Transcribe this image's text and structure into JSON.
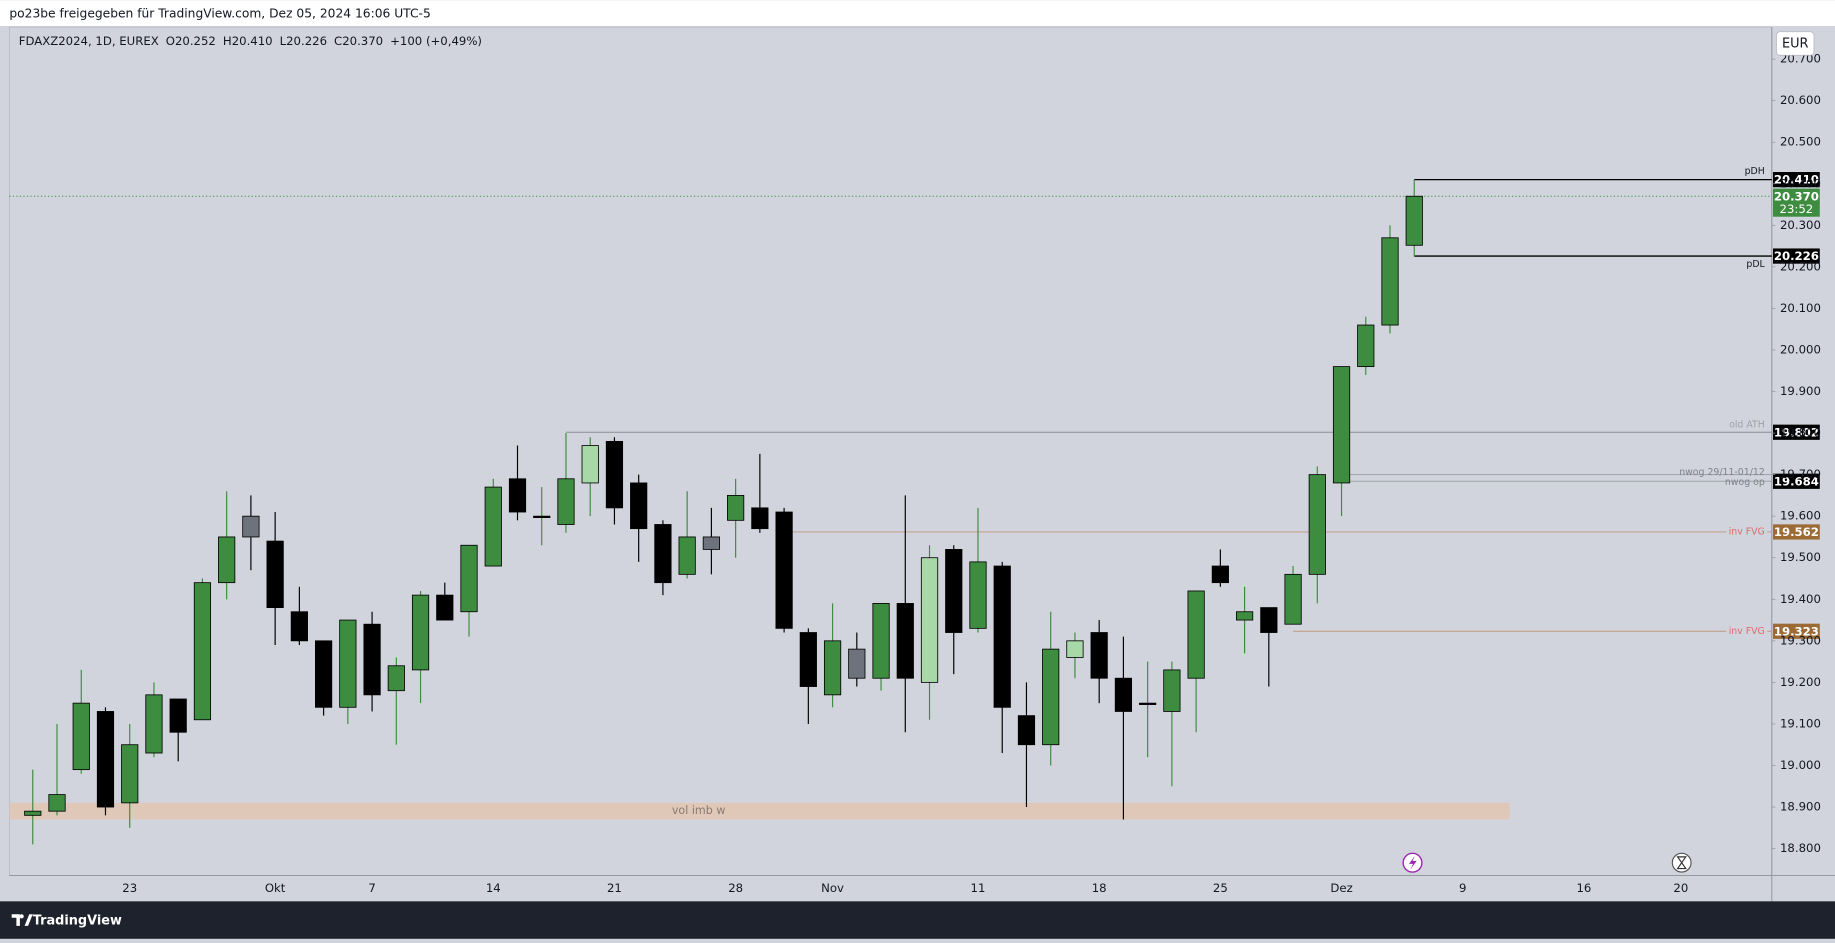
{
  "window_title": "po23be freigegeben für TradingView.com, Dez 05, 2024 16:06 UTC-5",
  "footer": "TradingView",
  "chart_data": {
    "type": "candlestick",
    "title": "FDAXZ2024, 1D, EUREX",
    "ohlc_text": [
      "O20.252",
      "H20.410",
      "L20.226",
      "C20.370",
      "+100 (+0,49%)"
    ],
    "currency": "EUR",
    "categories": [
      null,
      null,
      null,
      null,
      "23",
      null,
      null,
      null,
      null,
      null,
      "Okt",
      null,
      null,
      null,
      "7",
      null,
      null,
      null,
      null,
      "14",
      null,
      null,
      null,
      null,
      "21",
      null,
      null,
      null,
      null,
      "28",
      null,
      null,
      null,
      "Nov",
      null,
      null,
      null,
      null,
      null,
      "11",
      null,
      null,
      null,
      null,
      "18",
      null,
      null,
      null,
      null,
      "25",
      null,
      null,
      null,
      null,
      "Dez",
      null,
      null,
      null,
      null,
      "9",
      null,
      null,
      null,
      null,
      "16",
      null,
      null,
      null,
      "20"
    ],
    "series": [
      {
        "open": [
          18.88,
          18.89,
          18.99,
          19.13,
          18.91,
          19.03,
          19.16,
          19.11,
          19.44,
          19.6,
          19.54,
          19.37,
          19.3,
          19.14,
          19.34,
          19.18,
          19.23,
          19.41,
          19.37,
          19.48,
          19.69,
          19.6,
          19.58,
          19.68,
          19.78,
          19.68,
          19.58,
          19.46,
          19.55,
          19.59,
          19.62,
          19.61,
          19.32,
          19.17,
          19.28,
          19.21,
          19.39,
          19.2,
          19.52,
          19.33,
          19.48,
          19.12,
          19.05,
          19.26,
          19.32,
          19.21,
          19.15,
          19.13,
          19.21,
          19.48,
          19.35,
          19.38,
          19.34,
          19.46,
          19.68,
          19.96,
          20.06,
          20.252,
          null,
          null,
          null,
          null,
          null,
          null,
          null,
          null,
          null,
          null,
          null
        ],
        "high": [
          18.99,
          19.1,
          19.23,
          19.14,
          19.1,
          19.2,
          19.16,
          19.45,
          19.66,
          19.65,
          19.61,
          19.43,
          19.3,
          19.35,
          19.37,
          19.26,
          19.42,
          19.44,
          19.53,
          19.69,
          19.77,
          19.67,
          19.8,
          19.79,
          19.79,
          19.7,
          19.59,
          19.66,
          19.62,
          19.69,
          19.75,
          19.62,
          19.33,
          19.39,
          19.32,
          19.39,
          19.65,
          19.53,
          19.53,
          19.62,
          19.49,
          19.2,
          19.37,
          19.32,
          19.35,
          19.31,
          19.25,
          19.25,
          19.42,
          19.52,
          19.43,
          19.38,
          19.48,
          19.72,
          19.96,
          20.08,
          20.3,
          20.41,
          null,
          null,
          null,
          null,
          null,
          null,
          null,
          null,
          null,
          null,
          null
        ],
        "low": [
          18.81,
          18.88,
          18.98,
          18.88,
          18.85,
          19.02,
          19.01,
          19.11,
          19.4,
          19.47,
          19.29,
          19.29,
          19.12,
          19.1,
          19.13,
          19.05,
          19.15,
          19.35,
          19.31,
          19.48,
          19.59,
          19.53,
          19.56,
          19.6,
          19.58,
          19.49,
          19.41,
          19.45,
          19.46,
          19.5,
          19.56,
          19.32,
          19.1,
          19.14,
          19.19,
          19.18,
          19.08,
          19.11,
          19.22,
          19.32,
          19.03,
          18.9,
          19.0,
          19.21,
          19.15,
          18.87,
          19.02,
          18.95,
          19.08,
          19.43,
          19.27,
          19.19,
          19.34,
          19.39,
          19.6,
          19.94,
          20.04,
          20.226,
          null,
          null,
          null,
          null,
          null,
          null,
          null,
          null,
          null,
          null,
          null
        ],
        "close": [
          18.89,
          18.93,
          19.15,
          18.9,
          19.05,
          19.17,
          19.08,
          19.44,
          19.55,
          19.55,
          19.38,
          19.3,
          19.14,
          19.35,
          19.17,
          19.24,
          19.41,
          19.35,
          19.53,
          19.67,
          19.61,
          19.6,
          19.69,
          19.77,
          19.62,
          19.57,
          19.44,
          19.55,
          19.52,
          19.65,
          19.57,
          19.33,
          19.19,
          19.3,
          19.21,
          19.39,
          19.21,
          19.5,
          19.32,
          19.49,
          19.14,
          19.05,
          19.28,
          19.3,
          19.21,
          19.13,
          19.15,
          19.23,
          19.42,
          19.44,
          19.37,
          19.32,
          19.46,
          19.7,
          19.96,
          20.06,
          20.27,
          20.37,
          null,
          null,
          null,
          null,
          null,
          null,
          null,
          null,
          null,
          null,
          null
        ],
        "up_color": "#3d8c40",
        "down_color": "#000000",
        "colors": [
          "#3d8c40",
          "#3d8c40",
          "#3d8c40",
          "#000000",
          "#3d8c40",
          "#3d8c40",
          "#000000",
          "#3d8c40",
          "#3d8c40",
          "#6e727c",
          "#000000",
          "#000000",
          "#000000",
          "#3d8c40",
          "#000000",
          "#3d8c40",
          "#3d8c40",
          "#000000",
          "#3d8c40",
          "#3d8c40",
          "#000000",
          "#000000",
          "#3d8c40",
          "#a8d8a8",
          "#000000",
          "#000000",
          "#000000",
          "#3d8c40",
          "#6e727c",
          "#3d8c40",
          "#000000",
          "#000000",
          "#000000",
          "#3d8c40",
          "#6e727c",
          "#3d8c40",
          "#000000",
          "#a8d8a8",
          "#000000",
          "#3d8c40",
          "#000000",
          "#000000",
          "#3d8c40",
          "#a8d8a8",
          "#000000",
          "#000000",
          "#000000",
          "#3d8c40",
          "#3d8c40",
          "#000000",
          "#3d8c40",
          "#000000",
          "#3d8c40",
          "#3d8c40",
          "#3d8c40",
          "#3d8c40",
          "#3d8c40",
          "#3d8c40",
          null,
          null,
          null,
          null,
          null,
          null,
          null,
          null,
          null,
          null,
          null
        ]
      }
    ],
    "ylim": [
      18.735,
      20.777
    ],
    "yticks": [
      {
        "value": 18.8,
        "label": "18.800"
      },
      {
        "value": 18.9,
        "label": "18.900"
      },
      {
        "value": 19.0,
        "label": "19.000"
      },
      {
        "value": 19.1,
        "label": "19.100"
      },
      {
        "value": 19.2,
        "label": "19.200"
      },
      {
        "value": 19.3,
        "label": "19.300"
      },
      {
        "value": 19.4,
        "label": "19.400"
      },
      {
        "value": 19.5,
        "label": "19.500"
      },
      {
        "value": 19.6,
        "label": "19.600"
      },
      {
        "value": 19.7,
        "label": "19.700"
      },
      {
        "value": 19.8,
        "label": "19.800"
      },
      {
        "value": 19.9,
        "label": "19.900"
      },
      {
        "value": 20.0,
        "label": "20.000"
      },
      {
        "value": 20.1,
        "label": "20.100"
      },
      {
        "value": 20.2,
        "label": "20.200"
      },
      {
        "value": 20.3,
        "label": "20.300"
      },
      {
        "value": 20.4,
        "label": "20.400"
      },
      {
        "value": 20.5,
        "label": "20.500"
      },
      {
        "value": 20.6,
        "label": "20.600"
      },
      {
        "value": 20.7,
        "label": "20.700"
      }
    ],
    "grid": false,
    "levels": [
      {
        "name": "pDH",
        "value": 20.41,
        "label": "20.410",
        "color": "#000000",
        "tag_color": "#131722",
        "badge_color": "#000000"
      },
      {
        "name": "pDL",
        "value": 20.226,
        "label": "20.226",
        "color": "#000000",
        "tag_color": "#131722",
        "badge_color": "#000000"
      },
      {
        "name": "old ATH",
        "value": 19.802,
        "label": "19.802",
        "color": "#8a8d94",
        "tag_color": "#9ea1a8",
        "badge_color": "#000000"
      },
      {
        "name": "nwog 29/11-01/12",
        "value": 19.7,
        "color": "#9ea1a8",
        "tag_color": "#7f828a"
      },
      {
        "name": "nwog op",
        "value": 19.684,
        "label": "19.684",
        "color": "#9ea1a8",
        "tag_color": "#7f828a",
        "badge_color": "#000000"
      },
      {
        "name": "inv FVG",
        "value": 19.562,
        "label": "19.562",
        "color": "#c09a80",
        "tag_color": "#e06a6a",
        "badge_color": "#9c6a35"
      },
      {
        "name": "inv FVG",
        "value": 19.323,
        "label": "19.323",
        "color": "#c09a80",
        "tag_color": "#e06a6a",
        "badge_color": "#9c6a35"
      }
    ],
    "last_price": {
      "value": 20.37,
      "label": "20.370",
      "countdown": "23:52",
      "color": "#3d8c40"
    },
    "zones": [
      {
        "name": "vol imb w",
        "low": 18.87,
        "high": 18.91,
        "color": "#e2c6b0"
      }
    ]
  }
}
